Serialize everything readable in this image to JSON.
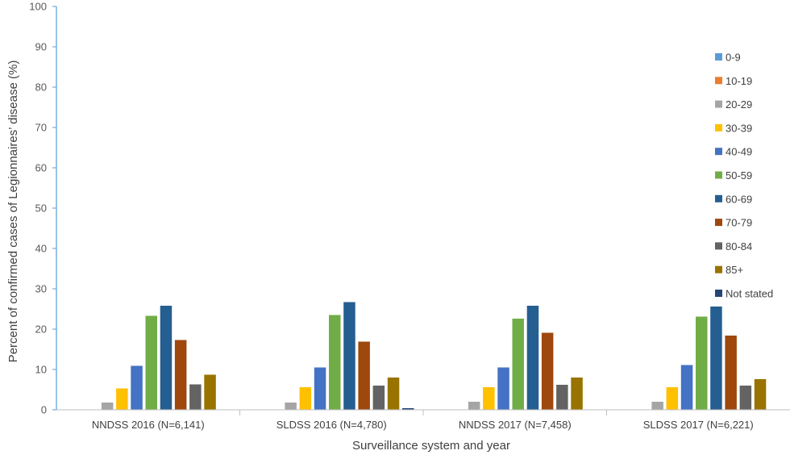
{
  "chart_data": {
    "type": "bar",
    "title": "",
    "xlabel": "Surveillance system and year",
    "ylabel": "Percent of confirmed cases of Legionnaires’ disease (%)",
    "ylim": [
      0,
      100
    ],
    "yticks": [
      0,
      10,
      20,
      30,
      40,
      50,
      60,
      70,
      80,
      90,
      100
    ],
    "grid": false,
    "legend_position": "right",
    "categories": [
      "NNDSS 2016 (N=6,141)",
      "SLDSS 2016 (N=4,780)",
      "NNDSS 2017 (N=7,458)",
      "SLDSS 2017 (N=6,221)"
    ],
    "series": [
      {
        "name": "0-9",
        "color": "#5B9BD5",
        "values": [
          0,
          0,
          0,
          0
        ]
      },
      {
        "name": "10-19",
        "color": "#ED7D31",
        "values": [
          0.1,
          0.1,
          0.1,
          0.1
        ]
      },
      {
        "name": "20-29",
        "color": "#A5A5A5",
        "values": [
          1.8,
          1.8,
          2.0,
          2.0
        ]
      },
      {
        "name": "30-39",
        "color": "#FFC000",
        "values": [
          5.3,
          5.6,
          5.6,
          5.6
        ]
      },
      {
        "name": "40-49",
        "color": "#4472C4",
        "values": [
          10.9,
          10.5,
          10.5,
          11.1
        ]
      },
      {
        "name": "50-59",
        "color": "#70AD47",
        "values": [
          23.3,
          23.5,
          22.6,
          23.1
        ]
      },
      {
        "name": "60-69",
        "color": "#255E91",
        "values": [
          25.8,
          26.7,
          25.8,
          25.6
        ]
      },
      {
        "name": "70-79",
        "color": "#9E480E",
        "values": [
          17.3,
          16.9,
          19.1,
          18.4
        ]
      },
      {
        "name": "80-84",
        "color": "#636363",
        "values": [
          6.3,
          6.0,
          6.2,
          6.0
        ]
      },
      {
        "name": "85+",
        "color": "#997300",
        "values": [
          8.7,
          8.0,
          8.0,
          7.6
        ]
      },
      {
        "name": "Not stated",
        "color": "#264478",
        "values": [
          0,
          0.4,
          0,
          0
        ]
      }
    ]
  }
}
